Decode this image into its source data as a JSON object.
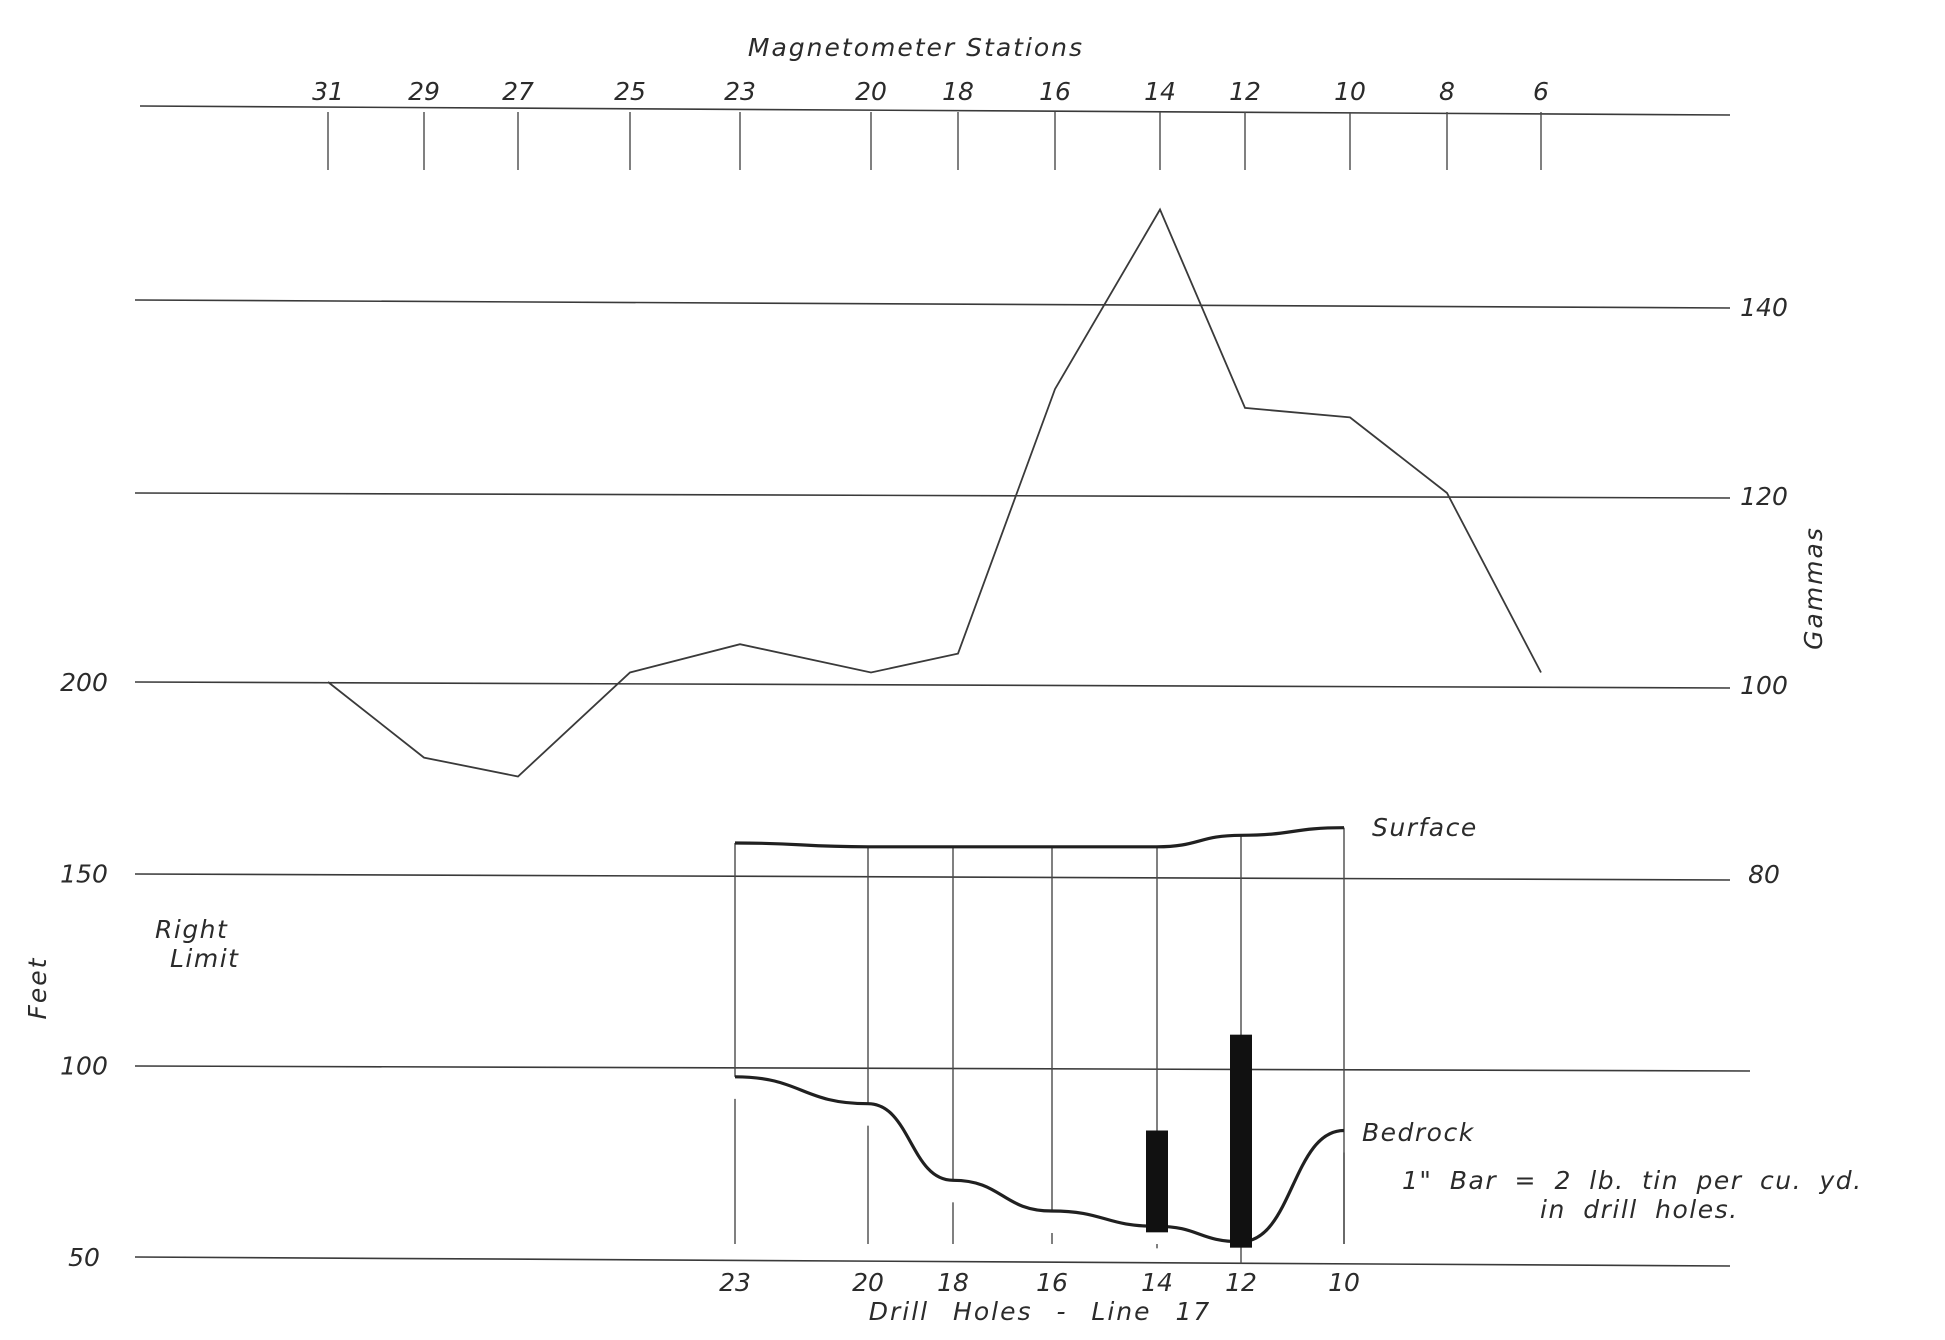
{
  "chart_data": {
    "type": "line",
    "title": "Magnetometer Stations",
    "xlabel": "Drill Holes - Line 17",
    "x_top_stations": [
      "31",
      "29",
      "27",
      "25",
      "23",
      "20",
      "18",
      "16",
      "14",
      "12",
      "10",
      "8",
      "6"
    ],
    "left_axis": {
      "label": "Feet",
      "ticks": [
        "200",
        "150",
        "100",
        "50"
      ],
      "ylim": [
        50,
        200
      ]
    },
    "right_axis": {
      "label": "Gammas",
      "ticks": [
        "140",
        "120",
        "100",
        "80"
      ],
      "ylim": [
        80,
        140
      ]
    },
    "magnetometer": {
      "x": [
        "31",
        "29",
        "27",
        "25",
        "23",
        "20",
        "18",
        "16",
        "14",
        "12",
        "10",
        "8",
        "6"
      ],
      "values": [
        100,
        92,
        90,
        101,
        104,
        101,
        103,
        131,
        150,
        129,
        128,
        120,
        101
      ]
    },
    "drill_holes": [
      "23",
      "20",
      "18",
      "16",
      "14",
      "12",
      "10"
    ],
    "surface": {
      "label": "Surface",
      "x": [
        "23",
        "20",
        "18",
        "16",
        "14",
        "12",
        "10"
      ],
      "values": [
        158,
        157,
        157,
        157,
        157,
        160,
        162
      ]
    },
    "bedrock": {
      "label": "Bedrock",
      "x": [
        "23",
        "20",
        "18",
        "16",
        "14",
        "12",
        "10"
      ],
      "values": [
        97,
        90,
        70,
        62,
        58,
        54,
        83
      ]
    },
    "tin_bars": [
      {
        "hole": "14",
        "top": 83
      },
      {
        "hole": "12",
        "top": 108
      }
    ],
    "annotations": {
      "right_limit_1": "Right",
      "right_limit_2": "Limit",
      "bar_note_1": "1\" Bar = 2 lb. tin per cu. yd.",
      "bar_note_2": "in drill holes."
    },
    "grid": true
  }
}
